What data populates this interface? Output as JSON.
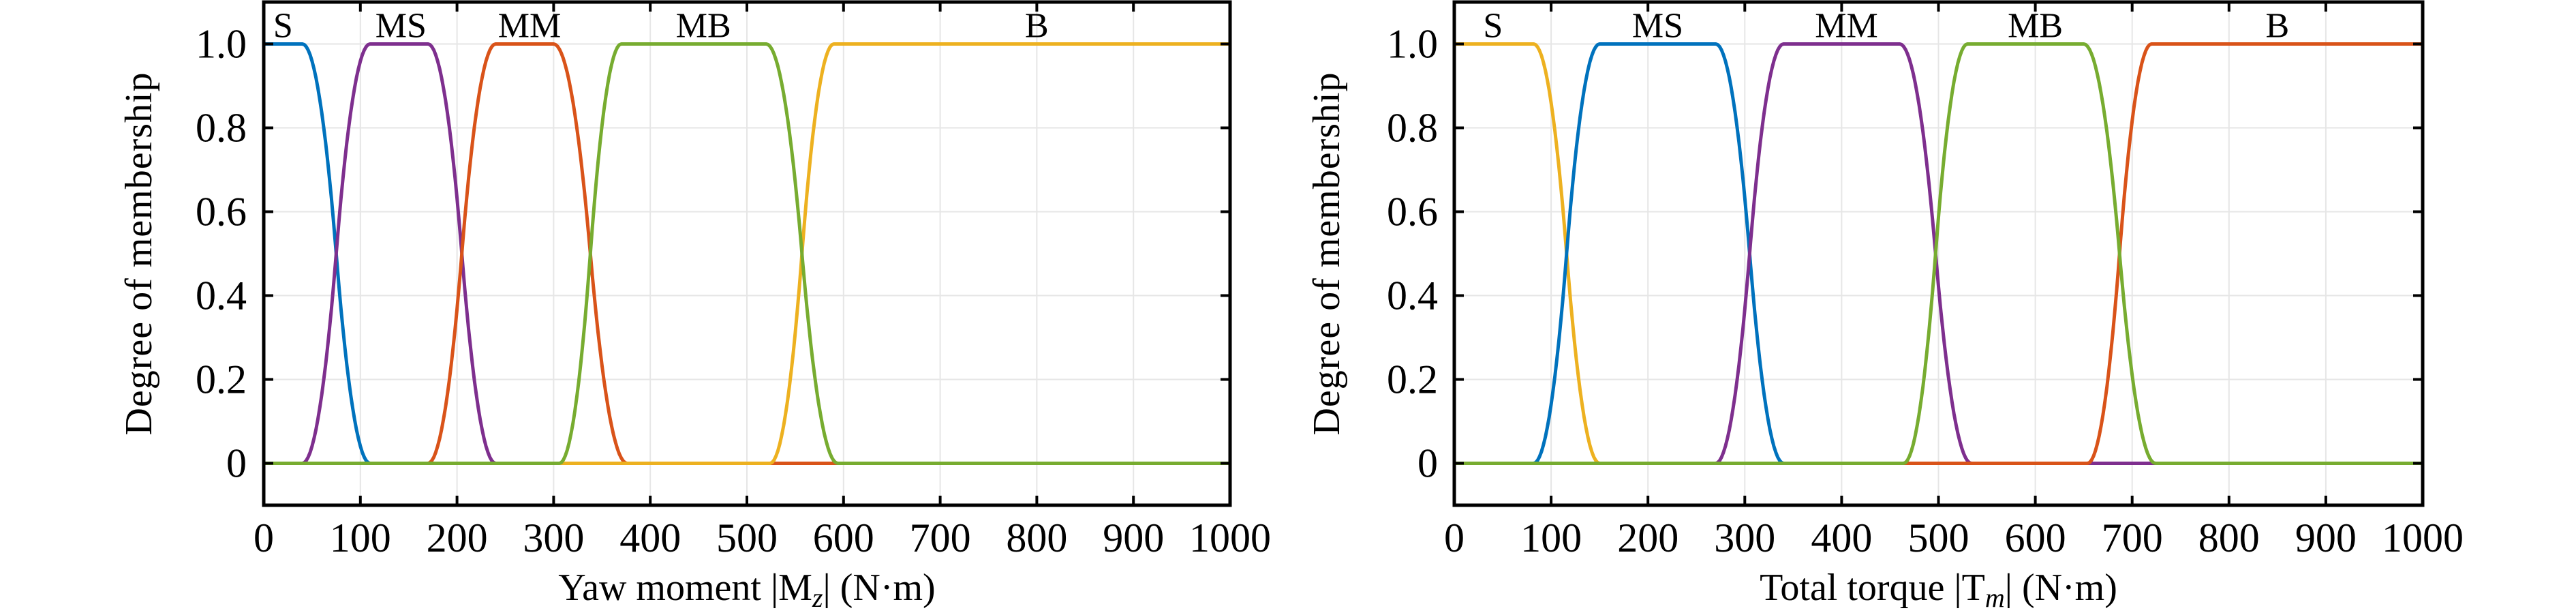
{
  "chart_data": [
    {
      "type": "line",
      "xlabel": "Yaw moment |M",
      "xlabel_sub": "z",
      "xlabel_unit": "| (N·m)",
      "ylabel": "Degree of membership",
      "xlim": [
        0,
        1000
      ],
      "ylim": [
        -0.1,
        1.1
      ],
      "xticks": [
        0,
        100,
        200,
        300,
        400,
        500,
        600,
        700,
        800,
        900,
        1000
      ],
      "yticks": [
        0,
        0.2,
        0.4,
        0.6,
        0.8,
        1.0
      ],
      "ytick_labels": [
        "0",
        "0.2",
        "0.4",
        "0.6",
        "0.8",
        "1.0"
      ],
      "grid": true,
      "series": [
        {
          "name": "S",
          "shape": "zmf",
          "params": [
            40,
            110
          ],
          "color": "#0072BD",
          "label_x": 20
        },
        {
          "name": "MS",
          "shape": "pimf",
          "params": [
            40,
            110,
            170,
            240
          ],
          "color": "#7E2F8E",
          "label_x": 142
        },
        {
          "name": "MM",
          "shape": "pimf",
          "params": [
            170,
            240,
            300,
            376
          ],
          "color": "#D95319",
          "label_x": 275
        },
        {
          "name": "B",
          "shape": "smf",
          "params": [
            524,
            590
          ],
          "color": "#EDB120",
          "label_x": 800
        },
        {
          "name": "MB",
          "shape": "pimf",
          "params": [
            306,
            370,
            520,
            594
          ],
          "color": "#77AC30",
          "label_x": 455
        }
      ]
    },
    {
      "type": "line",
      "xlabel": "Total torque |T",
      "xlabel_sub": "m",
      "xlabel_unit": "| (N·m)",
      "ylabel": "Degree of membership",
      "xlim": [
        0,
        1000
      ],
      "ylim": [
        -0.1,
        1.1
      ],
      "xticks": [
        0,
        100,
        200,
        300,
        400,
        500,
        600,
        700,
        800,
        900,
        1000
      ],
      "yticks": [
        0,
        0.2,
        0.4,
        0.6,
        0.8,
        1.0
      ],
      "ytick_labels": [
        "0",
        "0.2",
        "0.4",
        "0.6",
        "0.8",
        "1.0"
      ],
      "grid": true,
      "series": [
        {
          "name": "S",
          "shape": "zmf",
          "params": [
            82,
            150
          ],
          "color": "#EDB120",
          "label_x": 40
        },
        {
          "name": "MS",
          "shape": "pimf",
          "params": [
            82,
            150,
            270,
            340
          ],
          "color": "#0072BD",
          "label_x": 210
        },
        {
          "name": "MM",
          "shape": "pimf",
          "params": [
            270,
            340,
            460,
            534
          ],
          "color": "#7E2F8E",
          "label_x": 405
        },
        {
          "name": "B",
          "shape": "smf",
          "params": [
            654,
            720
          ],
          "color": "#D95319",
          "label_x": 850
        },
        {
          "name": "MB",
          "shape": "pimf",
          "params": [
            464,
            530,
            650,
            724
          ],
          "color": "#77AC30",
          "label_x": 600
        }
      ]
    }
  ]
}
